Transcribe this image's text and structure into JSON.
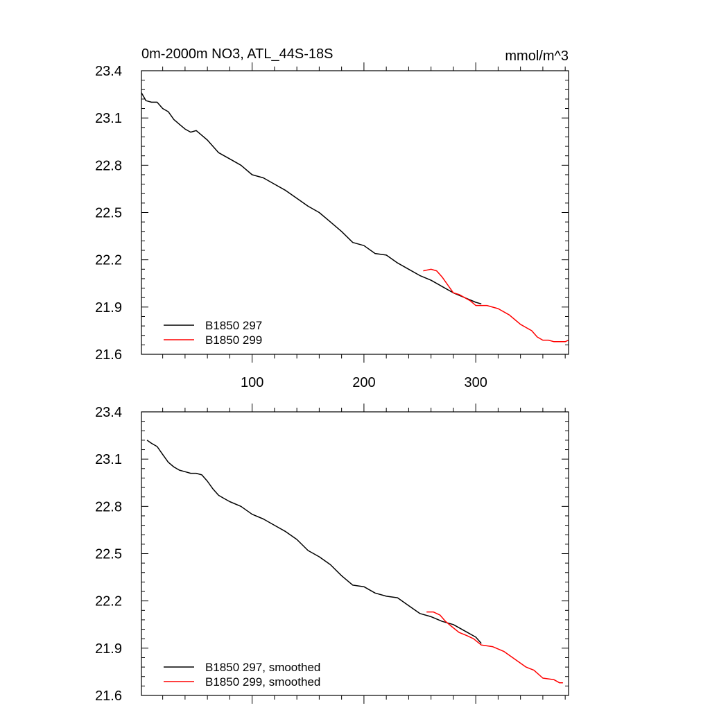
{
  "chart_data": [
    {
      "type": "line",
      "title": "0m-2000m NO3, ATL_44S-18S",
      "units": "mmol/m^3",
      "xlabel": "",
      "ylabel": "",
      "xlim": [
        1,
        383
      ],
      "ylim": [
        21.6,
        23.4
      ],
      "yticks": [
        21.6,
        21.9,
        22.2,
        22.5,
        22.8,
        23.1,
        23.4
      ],
      "xticks": [
        100,
        200,
        300
      ],
      "xtick_labels_visible": true,
      "legend_position": "bottom-left",
      "grid": false,
      "colors": {
        "B1850 297": "#000000",
        "B1850 299": "#ff0000"
      },
      "series": [
        {
          "name": "B1850 297",
          "color": "#000000",
          "x": [
            1,
            5,
            10,
            15,
            20,
            25,
            30,
            35,
            40,
            45,
            50,
            55,
            60,
            65,
            70,
            75,
            80,
            90,
            100,
            110,
            120,
            130,
            140,
            150,
            160,
            170,
            180,
            190,
            200,
            210,
            220,
            230,
            240,
            250,
            260,
            270,
            280,
            290,
            300,
            305
          ],
          "values": [
            23.26,
            23.21,
            23.2,
            23.2,
            23.16,
            23.14,
            23.09,
            23.06,
            23.03,
            23.01,
            23.02,
            22.99,
            22.96,
            22.92,
            22.88,
            22.86,
            22.84,
            22.8,
            22.74,
            22.72,
            22.68,
            22.64,
            22.59,
            22.54,
            22.5,
            22.44,
            22.38,
            22.31,
            22.29,
            22.24,
            22.23,
            22.18,
            22.14,
            22.1,
            22.07,
            22.03,
            21.99,
            21.96,
            21.93,
            21.92
          ]
        },
        {
          "name": "B1850 299",
          "color": "#ff0000",
          "x": [
            253,
            260,
            265,
            270,
            275,
            280,
            285,
            290,
            295,
            300,
            310,
            320,
            330,
            335,
            340,
            345,
            350,
            355,
            360,
            365,
            370,
            375,
            380,
            383
          ],
          "values": [
            22.13,
            22.14,
            22.13,
            22.09,
            22.04,
            21.99,
            21.98,
            21.96,
            21.94,
            21.91,
            21.91,
            21.89,
            21.85,
            21.82,
            21.79,
            21.77,
            21.75,
            21.71,
            21.69,
            21.69,
            21.68,
            21.68,
            21.68,
            21.69
          ]
        }
      ]
    },
    {
      "type": "line",
      "title": "",
      "xlabel": "",
      "ylabel": "",
      "xlim": [
        1,
        383
      ],
      "ylim": [
        21.6,
        23.4
      ],
      "yticks": [
        21.6,
        21.9,
        22.2,
        22.5,
        22.8,
        23.1,
        23.4
      ],
      "xticks": [
        100,
        200,
        300
      ],
      "xtick_labels_visible": false,
      "legend_position": "bottom-left",
      "grid": false,
      "colors": {
        "B1850 297, smoothed": "#000000",
        "B1850 299, smoothed": "#ff0000"
      },
      "series": [
        {
          "name": "B1850 297, smoothed",
          "color": "#000000",
          "x": [
            6,
            10,
            15,
            20,
            25,
            30,
            35,
            40,
            45,
            50,
            55,
            60,
            65,
            70,
            75,
            80,
            90,
            100,
            110,
            120,
            130,
            140,
            150,
            160,
            170,
            180,
            190,
            200,
            210,
            220,
            230,
            240,
            250,
            260,
            270,
            280,
            290,
            300,
            305
          ],
          "values": [
            23.22,
            23.2,
            23.18,
            23.13,
            23.08,
            23.05,
            23.03,
            23.02,
            23.01,
            23.01,
            23.0,
            22.96,
            22.91,
            22.87,
            22.85,
            22.83,
            22.8,
            22.75,
            22.72,
            22.68,
            22.64,
            22.59,
            22.52,
            22.48,
            22.43,
            22.36,
            22.3,
            22.29,
            22.25,
            22.23,
            22.22,
            22.17,
            22.12,
            22.1,
            22.07,
            22.05,
            22.01,
            21.97,
            21.93
          ]
        },
        {
          "name": "B1850 299, smoothed",
          "color": "#ff0000",
          "x": [
            256,
            262,
            268,
            273,
            278,
            285,
            292,
            298,
            305,
            315,
            325,
            335,
            345,
            352,
            360,
            370,
            375,
            378
          ],
          "values": [
            22.13,
            22.13,
            22.11,
            22.07,
            22.04,
            22.0,
            21.98,
            21.96,
            21.92,
            21.91,
            21.88,
            21.83,
            21.78,
            21.76,
            21.71,
            21.7,
            21.68,
            21.68
          ]
        }
      ]
    }
  ]
}
